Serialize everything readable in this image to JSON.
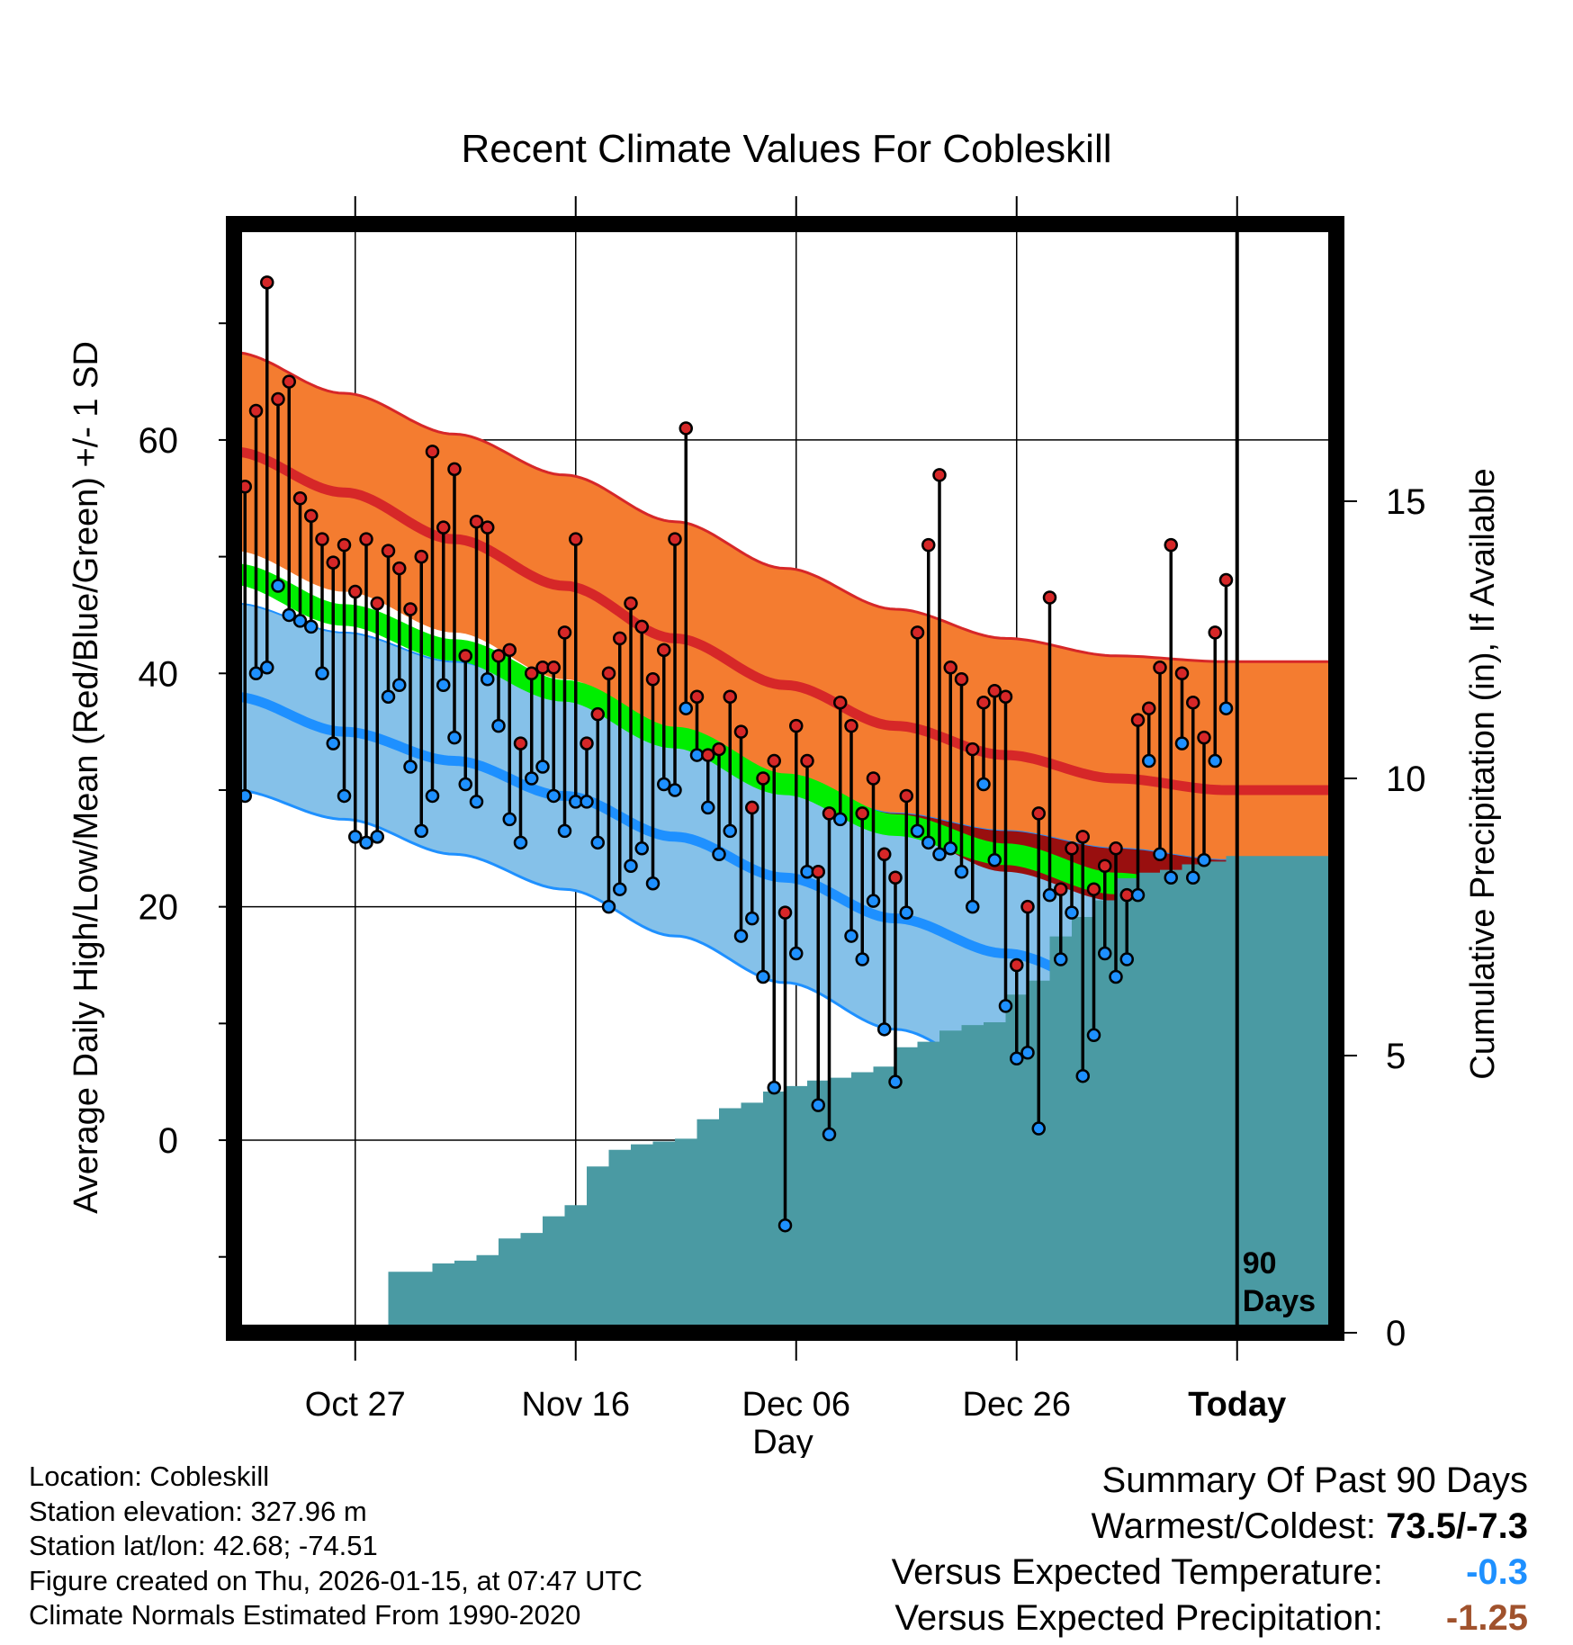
{
  "chart_data": {
    "type": "line",
    "title": "Recent Climate Values For Cobleskill",
    "xlabel": "Day",
    "ylabel_left": "Average Daily High/Low/Mean (Red/Blue/Green) +/- 1 SD",
    "ylabel_right": "Cumulative Precipitation (in), If Available",
    "day_range": [
      -91,
      9
    ],
    "ylim": [
      -16.5,
      78.5
    ],
    "y_ticks": [
      0,
      20,
      40,
      60
    ],
    "y_tick_labels": [
      "0",
      "20",
      "40",
      "60"
    ],
    "precip_ticks": [
      0,
      5,
      10,
      15
    ],
    "precip_tick_labels": [
      "0",
      "5",
      "10",
      "15"
    ],
    "precip_scale_max_in": 20,
    "x_ticks": [
      -80,
      -60,
      -40,
      -20,
      0
    ],
    "x_tick_labels": [
      "Oct 27",
      "Nov 16",
      "Dec 06",
      "Dec 26",
      "Today"
    ],
    "today_marker_label": [
      "90",
      "Days"
    ],
    "normals": {
      "days": [
        -91,
        -81,
        -71,
        -61,
        -51,
        -41,
        -31,
        -21,
        -11,
        -1,
        9
      ],
      "high_mean": [
        59,
        55.5,
        51.5,
        47.5,
        43,
        39,
        35.5,
        33,
        31,
        30,
        30
      ],
      "high_upper": [
        67.5,
        64,
        60.5,
        57,
        53,
        49,
        45.5,
        43,
        41.5,
        41,
        41
      ],
      "high_lower": [
        50.5,
        47,
        43.5,
        39.5,
        35,
        30.5,
        26.5,
        23,
        20.5,
        19,
        19
      ],
      "low_mean": [
        38,
        35,
        32.5,
        29.5,
        26,
        22.5,
        19,
        16,
        13,
        11,
        10.5
      ],
      "low_upper": [
        46,
        43.5,
        41,
        38,
        34.5,
        31,
        28,
        26.5,
        25,
        24,
        23.5
      ],
      "low_lower": [
        30,
        27.5,
        24.5,
        21.5,
        17.5,
        13.5,
        9.5,
        5.5,
        1.5,
        -1.5,
        -2
      ],
      "avg_mean": [
        48.5,
        45,
        42,
        38.5,
        34.5,
        30.5,
        27,
        24.5,
        22,
        20.5,
        20
      ]
    },
    "series": [
      {
        "name": "Daily High",
        "values": [
          56,
          62.5,
          73.5,
          63.5,
          65,
          55,
          53.5,
          51.5,
          49.5,
          51,
          47,
          51.5,
          46,
          50.5,
          49,
          45.5,
          50,
          59,
          52.5,
          57.5,
          41.5,
          53,
          52.5,
          41.5,
          42,
          34,
          40,
          40.5,
          40.5,
          43.5,
          51.5,
          34,
          36.5,
          40,
          43,
          46,
          44,
          39.5,
          42,
          51.5,
          61,
          38,
          33,
          33.5,
          38,
          35,
          28.5,
          31,
          32.5,
          19.5,
          35.5,
          32.5,
          23,
          28,
          37.5,
          35.5,
          28,
          31,
          24.5,
          22.5,
          29.5,
          43.5,
          51,
          57,
          40.5,
          39.5,
          33.5,
          37.5,
          38.5,
          38,
          15,
          20,
          28,
          46.5,
          21.5,
          25,
          26,
          21.5,
          23.5,
          25,
          21,
          36,
          37,
          40.5,
          51,
          40,
          37.5,
          34.5,
          43.5,
          48
        ]
      },
      {
        "name": "Daily Low",
        "values": [
          29.5,
          40,
          40.5,
          47.5,
          45,
          44.5,
          44,
          40,
          34,
          29.5,
          26,
          25.5,
          26,
          38,
          39,
          32,
          26.5,
          29.5,
          39,
          34.5,
          30.5,
          29,
          39.5,
          35.5,
          27.5,
          25.5,
          31,
          32,
          29.5,
          26.5,
          29,
          29,
          25.5,
          20,
          21.5,
          23.5,
          25,
          22,
          30.5,
          30,
          37,
          33,
          28.5,
          24.5,
          26.5,
          17.5,
          19,
          14,
          4.5,
          -7.3,
          16,
          23,
          3,
          0.5,
          27.5,
          17.5,
          15.5,
          20.5,
          9.5,
          5,
          19.5,
          26.5,
          25.5,
          24.5,
          25,
          23,
          20,
          30.5,
          24,
          11.5,
          7,
          7.5,
          1,
          21,
          15.5,
          19.5,
          5.5,
          9,
          16,
          14,
          15.5,
          21,
          32.5,
          24.5,
          22.5,
          34,
          22.5,
          24,
          32.5,
          37
        ]
      },
      {
        "name": "Cumulative Precipitation",
        "days": [
          -79,
          -77,
          -75,
          -73,
          -71,
          -69,
          -67,
          -65,
          -63,
          -61,
          -59,
          -57,
          -55,
          -53,
          -51,
          -49,
          -47,
          -45,
          -43,
          -41,
          -39,
          -37,
          -35,
          -33,
          -31,
          -29,
          -27,
          -25,
          -23,
          -21,
          -19,
          -17,
          -15,
          -13,
          -11,
          -9,
          -7,
          -5,
          -3,
          -1,
          9
        ],
        "values": [
          0,
          1.1,
          1.1,
          1.25,
          1.3,
          1.4,
          1.7,
          1.8,
          2.1,
          2.3,
          3,
          3.3,
          3.4,
          3.45,
          3.5,
          3.85,
          4.05,
          4.15,
          4.35,
          4.45,
          4.55,
          4.6,
          4.7,
          4.8,
          5.15,
          5.25,
          5.45,
          5.55,
          5.6,
          6.1,
          6.35,
          7.15,
          7.5,
          7.8,
          8.2,
          8.3,
          8.35,
          8.45,
          8.5,
          8.6,
          8.6
        ]
      }
    ]
  },
  "footer": {
    "location": "Location: Cobleskill",
    "elevation": "Station elevation: 327.96 m",
    "latlon": "Station lat/lon: 42.68; -74.51",
    "created": "Figure created on Thu, 2026-01-15, at 07:47 UTC",
    "normals": "Climate Normals Estimated From 1990-2020"
  },
  "summary": {
    "heading": "Summary Of Past 90 Days",
    "warm_cold_label": "Warmest/Coldest:",
    "warm_cold_value": "73.5/-7.3",
    "temp_label": "Versus Expected Temperature:",
    "temp_value": "-0.3",
    "precip_label": "Versus Expected Precipitation:",
    "precip_value": "-1.25",
    "colors": {
      "temp": "#1e90ff",
      "precip": "#a0522d"
    }
  },
  "colors": {
    "high_band": "#f47c30",
    "high_line": "#d62728",
    "low_band": "#85c1e9",
    "low_line": "#1e90ff",
    "overlap_band": "#990f0f",
    "mean_band": "#00ee00",
    "precip_fill": "#4a9aa3",
    "high_dot": "#d62728",
    "low_dot": "#1e90ff"
  }
}
